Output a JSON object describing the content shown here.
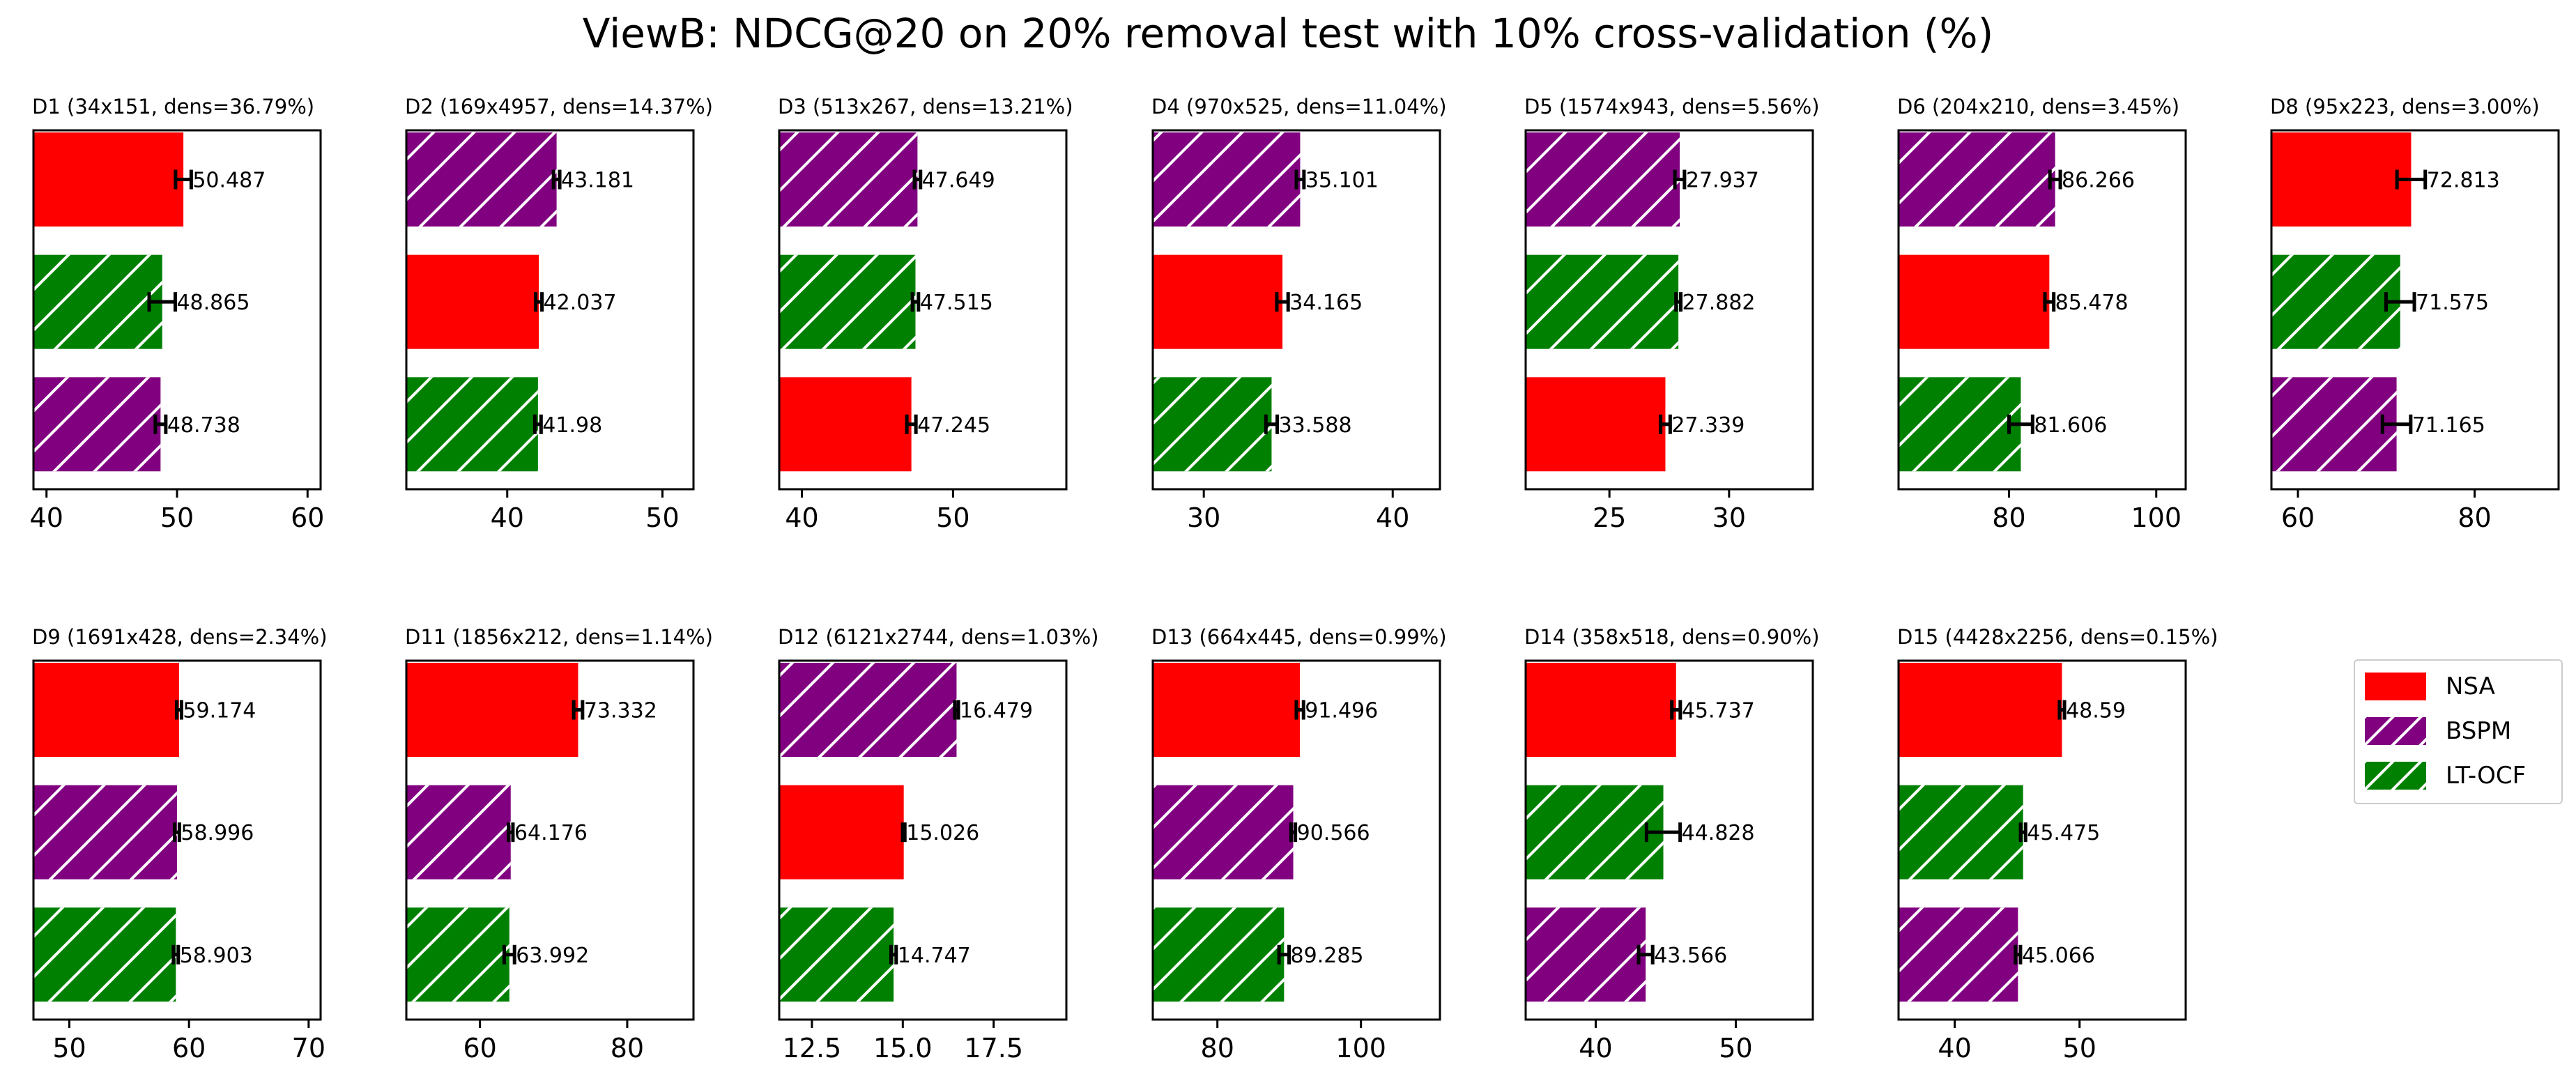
{
  "figure": {
    "title": "ViewB: NDCG@20 on 20% removal test with 10% cross-validation (%)"
  },
  "legend": {
    "placement": "right, second row",
    "items": [
      {
        "name": "NSA",
        "color": "#ff0000",
        "hatch": false
      },
      {
        "name": "BSPM",
        "color": "#800080",
        "hatch": true
      },
      {
        "name": "LT-OCF",
        "color": "#008000",
        "hatch": true
      }
    ]
  },
  "chart_data": [
    {
      "type": "bar",
      "orientation": "horizontal",
      "title": "D1 (34x151, dens=36.79%)",
      "xlim": [
        39,
        61
      ],
      "xticks": [
        40,
        50,
        60
      ],
      "xtick_labels": [
        "40",
        "50",
        "60"
      ],
      "bars": [
        {
          "series": "NSA",
          "value": 50.487,
          "label": "50.487",
          "err": 0.6
        },
        {
          "series": "LT-OCF",
          "value": 48.865,
          "label": "48.865",
          "err": 1.0
        },
        {
          "series": "BSPM",
          "value": 48.738,
          "label": "48.738",
          "err": 0.4
        }
      ]
    },
    {
      "type": "bar",
      "orientation": "horizontal",
      "title": "D2 (169x4957, dens=14.37%)",
      "xlim": [
        33.5,
        52
      ],
      "xticks": [
        40,
        50
      ],
      "xtick_labels": [
        "40",
        "50"
      ],
      "bars": [
        {
          "series": "BSPM",
          "value": 43.181,
          "label": "43.181",
          "err": 0.2
        },
        {
          "series": "NSA",
          "value": 42.037,
          "label": "42.037",
          "err": 0.2
        },
        {
          "series": "LT-OCF",
          "value": 41.98,
          "label": "41.98",
          "err": 0.2
        }
      ]
    },
    {
      "type": "bar",
      "orientation": "horizontal",
      "title": "D3 (513x267, dens=13.21%)",
      "xlim": [
        38.5,
        57.5
      ],
      "xticks": [
        40,
        50
      ],
      "xtick_labels": [
        "40",
        "50"
      ],
      "bars": [
        {
          "series": "BSPM",
          "value": 47.649,
          "label": "47.649",
          "err": 0.2
        },
        {
          "series": "LT-OCF",
          "value": 47.515,
          "label": "47.515",
          "err": 0.2
        },
        {
          "series": "NSA",
          "value": 47.245,
          "label": "47.245",
          "err": 0.3
        }
      ]
    },
    {
      "type": "bar",
      "orientation": "horizontal",
      "title": "D4 (970x525, dens=11.04%)",
      "xlim": [
        27.3,
        42.5
      ],
      "xticks": [
        30,
        40
      ],
      "xtick_labels": [
        "30",
        "40"
      ],
      "bars": [
        {
          "series": "BSPM",
          "value": 35.101,
          "label": "35.101",
          "err": 0.2
        },
        {
          "series": "NSA",
          "value": 34.165,
          "label": "34.165",
          "err": 0.3
        },
        {
          "series": "LT-OCF",
          "value": 33.588,
          "label": "33.588",
          "err": 0.3
        }
      ]
    },
    {
      "type": "bar",
      "orientation": "horizontal",
      "title": "D5 (1574x943, dens=5.56%)",
      "xlim": [
        21.5,
        33.5
      ],
      "xticks": [
        25,
        30
      ],
      "xtick_labels": [
        "25",
        "30"
      ],
      "bars": [
        {
          "series": "BSPM",
          "value": 27.937,
          "label": "27.937",
          "err": 0.2
        },
        {
          "series": "LT-OCF",
          "value": 27.882,
          "label": "27.882",
          "err": 0.1
        },
        {
          "series": "NSA",
          "value": 27.339,
          "label": "27.339",
          "err": 0.2
        }
      ]
    },
    {
      "type": "bar",
      "orientation": "horizontal",
      "title": "D6 (204x210, dens=3.45%)",
      "xlim": [
        65,
        104
      ],
      "xticks": [
        80,
        100
      ],
      "xtick_labels": [
        "80",
        "100"
      ],
      "bars": [
        {
          "series": "BSPM",
          "value": 86.266,
          "label": "86.266",
          "err": 0.7
        },
        {
          "series": "NSA",
          "value": 85.478,
          "label": "85.478",
          "err": 0.6
        },
        {
          "series": "LT-OCF",
          "value": 81.606,
          "label": "81.606",
          "err": 1.6
        }
      ]
    },
    {
      "type": "bar",
      "orientation": "horizontal",
      "title": "D8 (95x223, dens=3.00%)",
      "xlim": [
        57,
        89.5
      ],
      "xticks": [
        60,
        80
      ],
      "xtick_labels": [
        "60",
        "80"
      ],
      "bars": [
        {
          "series": "NSA",
          "value": 72.813,
          "label": "72.813",
          "err": 1.6
        },
        {
          "series": "LT-OCF",
          "value": 71.575,
          "label": "71.575",
          "err": 1.6
        },
        {
          "series": "BSPM",
          "value": 71.165,
          "label": "71.165",
          "err": 1.6
        }
      ]
    },
    {
      "type": "bar",
      "orientation": "horizontal",
      "title": "D9 (1691x428, dens=2.34%)",
      "xlim": [
        47,
        71
      ],
      "xticks": [
        50,
        60,
        70
      ],
      "xtick_labels": [
        "50",
        "60",
        "70"
      ],
      "bars": [
        {
          "series": "NSA",
          "value": 59.174,
          "label": "59.174",
          "err": 0.2
        },
        {
          "series": "BSPM",
          "value": 58.996,
          "label": "58.996",
          "err": 0.2
        },
        {
          "series": "LT-OCF",
          "value": 58.903,
          "label": "58.903",
          "err": 0.2
        }
      ]
    },
    {
      "type": "bar",
      "orientation": "horizontal",
      "title": "D11 (1856x212, dens=1.14%)",
      "xlim": [
        50,
        89
      ],
      "xticks": [
        60,
        80
      ],
      "xtick_labels": [
        "60",
        "80"
      ],
      "bars": [
        {
          "series": "NSA",
          "value": 73.332,
          "label": "73.332",
          "err": 0.6
        },
        {
          "series": "BSPM",
          "value": 64.176,
          "label": "64.176",
          "err": 0.3
        },
        {
          "series": "LT-OCF",
          "value": 63.992,
          "label": "63.992",
          "err": 0.7
        }
      ]
    },
    {
      "type": "bar",
      "orientation": "horizontal",
      "title": "D12 (6121x2744, dens=1.03%)",
      "xlim": [
        11.6,
        19.5
      ],
      "xticks": [
        12.5,
        15.0,
        17.5
      ],
      "xtick_labels": [
        "12.5",
        "15.0",
        "17.5"
      ],
      "bars": [
        {
          "series": "BSPM",
          "value": 16.479,
          "label": "16.479",
          "err": 0.05
        },
        {
          "series": "NSA",
          "value": 15.026,
          "label": "15.026",
          "err": 0.03
        },
        {
          "series": "LT-OCF",
          "value": 14.747,
          "label": "14.747",
          "err": 0.07
        }
      ]
    },
    {
      "type": "bar",
      "orientation": "horizontal",
      "title": "D13 (664x445, dens=0.99%)",
      "xlim": [
        71,
        111
      ],
      "xticks": [
        80,
        100
      ],
      "xtick_labels": [
        "80",
        "100"
      ],
      "bars": [
        {
          "series": "NSA",
          "value": 91.496,
          "label": "91.496",
          "err": 0.5
        },
        {
          "series": "BSPM",
          "value": 90.566,
          "label": "90.566",
          "err": 0.3
        },
        {
          "series": "LT-OCF",
          "value": 89.285,
          "label": "89.285",
          "err": 0.7
        }
      ]
    },
    {
      "type": "bar",
      "orientation": "horizontal",
      "title": "D14 (358x518, dens=0.90%)",
      "xlim": [
        35,
        55.5
      ],
      "xticks": [
        40,
        50
      ],
      "xtick_labels": [
        "40",
        "50"
      ],
      "bars": [
        {
          "series": "NSA",
          "value": 45.737,
          "label": "45.737",
          "err": 0.3
        },
        {
          "series": "LT-OCF",
          "value": 44.828,
          "label": "44.828",
          "err": 1.2
        },
        {
          "series": "BSPM",
          "value": 43.566,
          "label": "43.566",
          "err": 0.5
        }
      ]
    },
    {
      "type": "bar",
      "orientation": "horizontal",
      "title": "D15 (4428x2256, dens=0.15%)",
      "xlim": [
        35.5,
        58.5
      ],
      "xticks": [
        40,
        50
      ],
      "xtick_labels": [
        "40",
        "50"
      ],
      "bars": [
        {
          "series": "NSA",
          "value": 48.59,
          "label": "48.59",
          "err": 0.2
        },
        {
          "series": "LT-OCF",
          "value": 45.475,
          "label": "45.475",
          "err": 0.2
        },
        {
          "series": "BSPM",
          "value": 45.066,
          "label": "45.066",
          "err": 0.2
        }
      ]
    }
  ]
}
